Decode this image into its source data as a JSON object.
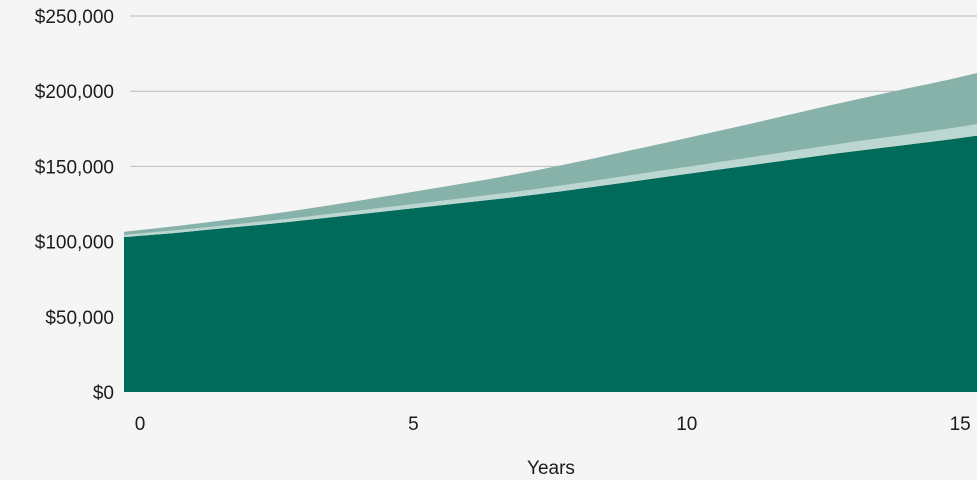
{
  "chart_data": {
    "type": "area",
    "stacked": true,
    "title": "",
    "xlabel": "Years",
    "ylabel": "",
    "xlim": [
      0,
      15.6
    ],
    "ylim": [
      0,
      250000
    ],
    "grid": true,
    "x_ticks": [
      0,
      5,
      10,
      15
    ],
    "x_tick_labels": [
      "0",
      "5",
      "10",
      "15"
    ],
    "y_ticks": [
      0,
      50000,
      100000,
      150000,
      200000,
      250000
    ],
    "y_tick_labels": [
      "$0",
      "$50,000",
      "$100,000",
      "$150,000",
      "$200,000",
      "$250,000"
    ],
    "x": [
      0,
      1,
      2,
      3,
      4,
      5,
      6,
      7,
      8,
      9,
      10,
      11,
      12,
      13,
      14,
      15,
      15.6
    ],
    "series": [
      {
        "values": [
          103000,
          106000,
          109500,
          113000,
          117000,
          121000,
          125000,
          129000,
          133500,
          138500,
          143500,
          148500,
          153500,
          158500,
          163000,
          167500,
          170500
        ],
        "color": "#006b5a"
      },
      {
        "values": [
          1500,
          1700,
          1900,
          2100,
          2400,
          2700,
          3000,
          3400,
          3800,
          4200,
          4600,
          5000,
          5500,
          6000,
          6600,
          7200,
          7600
        ],
        "color": "#bcd7d1"
      },
      {
        "values": [
          2000,
          2800,
          3600,
          4800,
          6100,
          7700,
          9400,
          11300,
          13500,
          15900,
          18400,
          21100,
          23900,
          26800,
          29700,
          32300,
          34000
        ],
        "color": "#87b2aa"
      }
    ]
  }
}
